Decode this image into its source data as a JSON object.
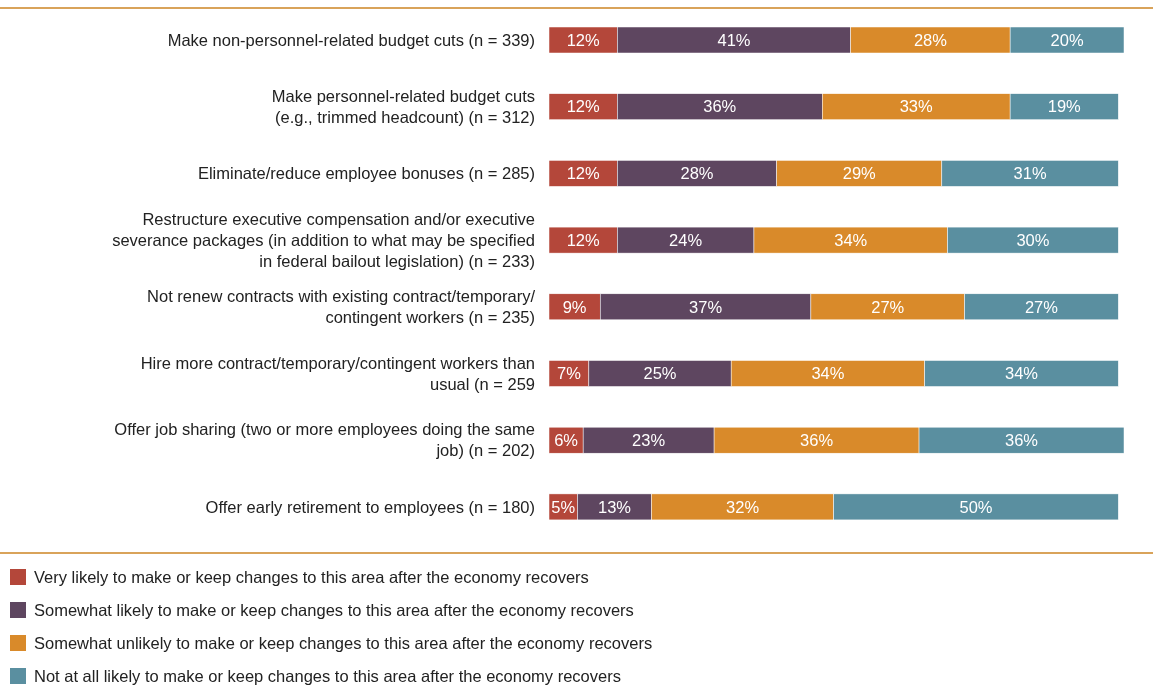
{
  "chart_data": {
    "type": "bar",
    "orientation": "horizontal",
    "stacked": true,
    "legend": "bottom",
    "categories": [
      "Make non-personnel-related budget cuts (n = 339)",
      "Make personnel-related budget cuts\n(e.g., trimmed headcount) (n = 312)",
      "Eliminate/reduce employee bonuses (n = 285)",
      "Restructure executive compensation and/or executive\nseverance packages (in addition to what may be specified\nin federal bailout legislation) (n = 233)",
      "Not renew contracts with existing contract/temporary/\ncontingent workers (n = 235)",
      "Hire more contract/temporary/contingent workers than\nusual (n = 259",
      "Offer job sharing (two or more employees doing the same\njob) (n = 202)",
      "Offer early retirement to employees (n = 180)"
    ],
    "series": [
      {
        "name": "Very likely to make or keep changes to this area after the economy recovers",
        "color": "#b4473a",
        "values": [
          12,
          12,
          12,
          12,
          9,
          7,
          6,
          5
        ],
        "value_labels": [
          "12%",
          "12%",
          "12%",
          "12%",
          "9%",
          "7%",
          "6%",
          "5%"
        ]
      },
      {
        "name": "Somewhat likely to make or keep changes to this area after the economy recovers",
        "color": "#5e4660",
        "values": [
          41,
          36,
          28,
          24,
          37,
          25,
          23,
          13
        ],
        "value_labels": [
          "41%",
          "36%",
          "28%",
          "24%",
          "37%",
          "25%",
          "23%",
          "13%"
        ]
      },
      {
        "name": "Somewhat unlikely to make or keep changes to this area after the economy recovers",
        "color": "#d98a2a",
        "values": [
          28,
          33,
          29,
          34,
          27,
          34,
          36,
          32
        ],
        "value_labels": [
          "28%",
          "33%",
          "29%",
          "34%",
          "27%",
          "34%",
          "36%",
          "32%"
        ]
      },
      {
        "name": "Not at all likely to make or keep changes to this area after the economy recovers",
        "color": "#5a8fa0",
        "values": [
          20,
          19,
          31,
          30,
          27,
          34,
          36,
          50
        ],
        "value_labels": [
          "20%",
          "19%",
          "31%",
          "30%",
          "27%",
          "34%",
          "36%",
          "50%"
        ]
      }
    ]
  }
}
